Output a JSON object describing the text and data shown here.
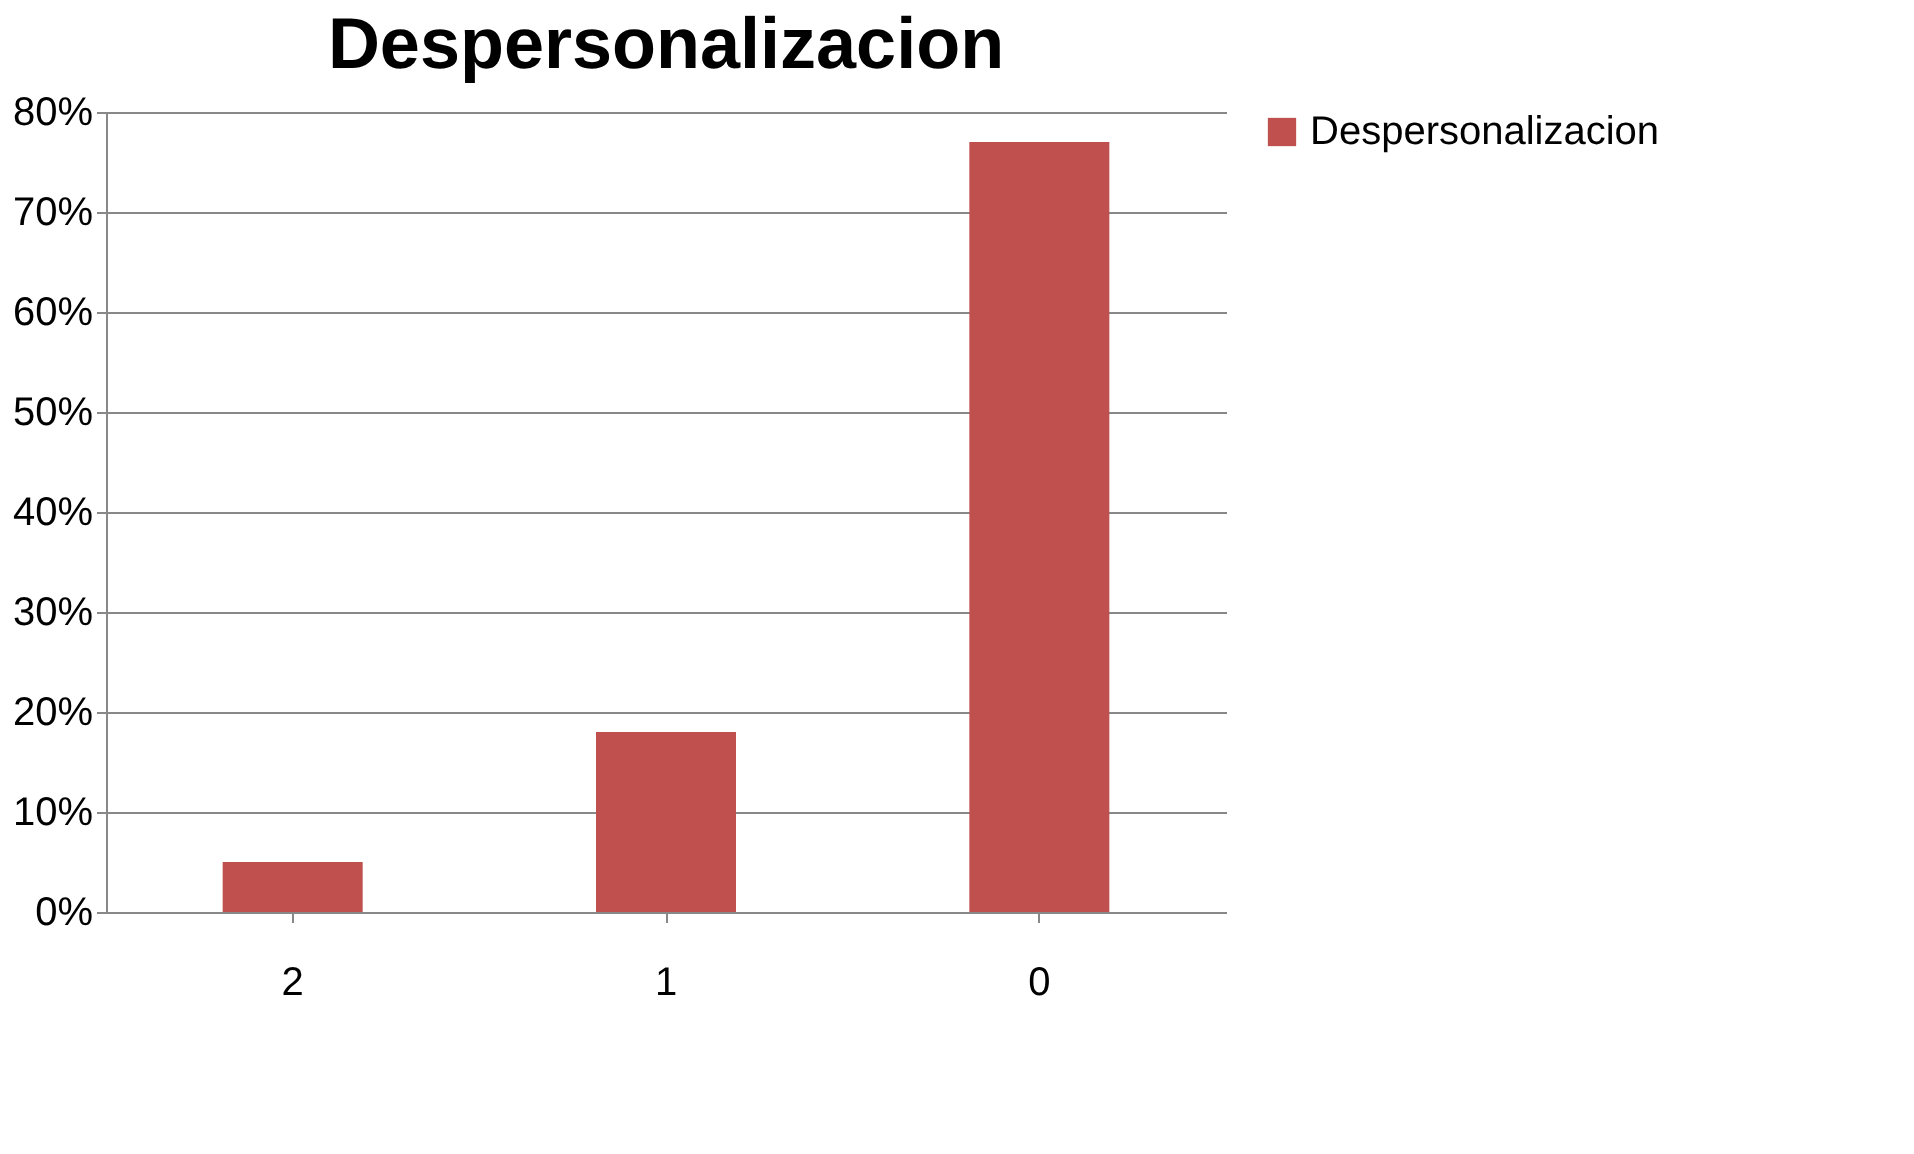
{
  "chart_data": {
    "type": "bar",
    "title": "Despersonalizacion",
    "categories": [
      "2",
      "1",
      "0"
    ],
    "series": [
      {
        "name": "Despersonalizacion",
        "color": "#c0504d",
        "values": [
          0.05,
          0.18,
          0.77
        ]
      }
    ],
    "ylim": [
      0,
      0.8
    ],
    "yticks": [
      {
        "value": 0,
        "label": "0%"
      },
      {
        "value": 0.1,
        "label": "10%"
      },
      {
        "value": 0.2,
        "label": "20%"
      },
      {
        "value": 0.3,
        "label": "30%"
      },
      {
        "value": 0.4,
        "label": "40%"
      },
      {
        "value": 0.5,
        "label": "50%"
      },
      {
        "value": 0.6,
        "label": "60%"
      },
      {
        "value": 0.7,
        "label": "70%"
      },
      {
        "value": 0.8,
        "label": "80%"
      }
    ],
    "grid": "y",
    "legend": "right"
  }
}
